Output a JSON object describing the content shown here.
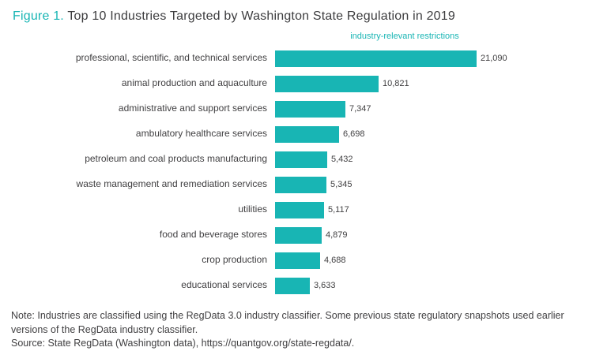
{
  "colors": {
    "accent": "#18b5b4",
    "title_text": "#3d3d3f",
    "body_text": "#414042"
  },
  "header": {
    "figure_label": "Figure 1.",
    "title": "Top 10 Industries Targeted by Washington State Regulation in 2019"
  },
  "chart_data": {
    "type": "bar",
    "orientation": "horizontal",
    "axis_title": "industry-relevant restrictions",
    "categories": [
      "professional, scientific, and technical services",
      "animal production and aquaculture",
      "administrative and support services",
      "ambulatory healthcare services",
      "petroleum and coal products manufacturing",
      "waste management and remediation services",
      "utilities",
      "food and beverage stores",
      "crop production",
      "educational services"
    ],
    "values": [
      21090,
      10821,
      7347,
      6698,
      5432,
      5345,
      5117,
      4879,
      4688,
      3633
    ],
    "value_labels": [
      "21,090",
      "10,821",
      "7,347",
      "6,698",
      "5,432",
      "5,345",
      "5,117",
      "4,879",
      "4,688",
      "3,633"
    ],
    "xlim": [
      0,
      21090
    ],
    "grid": false,
    "legend": false,
    "bar_color": "#18b5b4"
  },
  "footer": {
    "note": "Note: Industries are classified using the RegData 3.0 industry classifier. Some previous state regulatory snapshots used earlier versions of the RegData industry classifier.",
    "source": "Source: State RegData (Washington data), https://quantgov.org/state-regdata/."
  }
}
